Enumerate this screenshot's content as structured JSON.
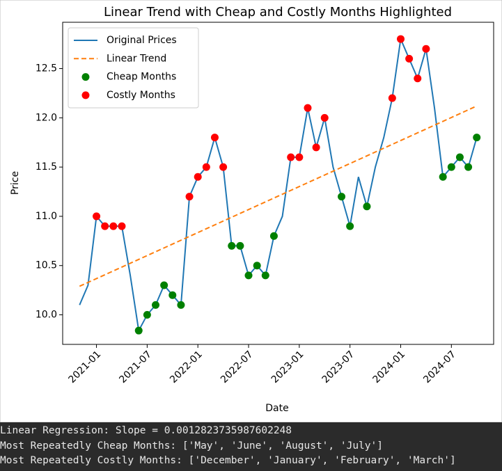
{
  "chart_data": {
    "type": "line",
    "title": "Linear Trend with Cheap and Costly Months Highlighted",
    "x_label": "Date",
    "y_label": "Price",
    "xlim": [
      "2020-09",
      "2024-12"
    ],
    "xticks": [
      "2021-01",
      "2021-07",
      "2022-01",
      "2022-07",
      "2023-01",
      "2023-07",
      "2024-01",
      "2024-07"
    ],
    "ylim": [
      9.7,
      12.97
    ],
    "yticks": [
      {
        "value": 10,
        "label": "10.0"
      },
      10.5,
      {
        "value": 11,
        "label": "11.0"
      },
      11.5,
      {
        "value": 12,
        "label": "12.0"
      },
      12.5
    ],
    "legend": "upper left",
    "series": [
      {
        "name": "Original Prices",
        "color": "#1f77b4",
        "style": "line",
        "x": [
          "2020-11",
          "2020-12",
          "2021-01",
          "2021-02",
          "2021-03",
          "2021-04",
          "2021-05",
          "2021-06",
          "2021-07",
          "2021-08",
          "2021-09",
          "2021-10",
          "2021-11",
          "2021-12",
          "2022-01",
          "2022-02",
          "2022-03",
          "2022-04",
          "2022-05",
          "2022-06",
          "2022-07",
          "2022-08",
          "2022-09",
          "2022-10",
          "2022-11",
          "2022-12",
          "2023-01",
          "2023-02",
          "2023-03",
          "2023-04",
          "2023-05",
          "2023-06",
          "2023-07",
          "2023-08",
          "2023-09",
          "2023-10",
          "2023-11",
          "2023-12",
          "2024-01",
          "2024-02",
          "2024-03",
          "2024-04",
          "2024-05",
          "2024-06",
          "2024-07",
          "2024-08",
          "2024-09",
          "2024-10"
        ],
        "values": [
          10.1,
          10.3,
          11.0,
          10.9,
          10.9,
          10.9,
          10.4,
          9.84,
          10.0,
          10.1,
          10.3,
          10.2,
          10.1,
          11.2,
          11.4,
          11.5,
          11.8,
          11.5,
          10.7,
          10.7,
          10.4,
          10.5,
          10.4,
          10.8,
          11.0,
          11.6,
          11.6,
          12.1,
          11.7,
          12.0,
          11.5,
          11.2,
          10.9,
          11.4,
          11.1,
          11.5,
          11.8,
          12.2,
          12.8,
          12.6,
          12.4,
          12.7,
          12.1,
          11.4,
          11.5,
          11.6,
          11.5,
          11.8
        ]
      },
      {
        "name": "Linear Trend",
        "color": "#ff7f0e",
        "style": "dashed",
        "x": [
          "2020-11",
          "2024-10"
        ],
        "values": [
          10.29,
          12.12
        ]
      },
      {
        "name": "Cheap Months",
        "color": "#008000",
        "style": "scatter",
        "x": [
          "2021-06",
          "2021-07",
          "2021-08",
          "2021-09",
          "2021-10",
          "2021-11",
          "2022-05",
          "2022-06",
          "2022-07",
          "2022-08",
          "2022-09",
          "2022-10",
          "2023-06",
          "2023-07",
          "2023-09",
          "2024-06",
          "2024-07",
          "2024-08",
          "2024-09",
          "2024-10"
        ],
        "values": [
          9.84,
          10.0,
          10.1,
          10.3,
          10.2,
          10.1,
          10.7,
          10.7,
          10.4,
          10.5,
          10.4,
          10.8,
          11.2,
          10.9,
          11.1,
          11.4,
          11.5,
          11.6,
          11.5,
          11.8
        ]
      },
      {
        "name": "Costly Months",
        "color": "#ff0000",
        "style": "scatter",
        "x": [
          "2021-01",
          "2021-02",
          "2021-03",
          "2021-04",
          "2021-12",
          "2022-01",
          "2022-02",
          "2022-03",
          "2022-04",
          "2022-12",
          "2023-01",
          "2023-02",
          "2023-03",
          "2023-04",
          "2023-12",
          "2024-01",
          "2024-02",
          "2024-03",
          "2024-04"
        ],
        "values": [
          11.0,
          10.9,
          10.9,
          10.9,
          11.2,
          11.4,
          11.5,
          11.8,
          11.5,
          11.6,
          11.6,
          12.1,
          11.7,
          12.0,
          12.2,
          12.8,
          12.6,
          12.4,
          12.7
        ]
      }
    ]
  },
  "console_output": [
    "Linear Regression: Slope = 0.0012823735987602248",
    "Most Repeatedly Cheap Months: ['May', 'June', 'August', 'July']",
    "Most Repeatedly Costly Months: ['December', 'January', 'February', 'March']"
  ]
}
